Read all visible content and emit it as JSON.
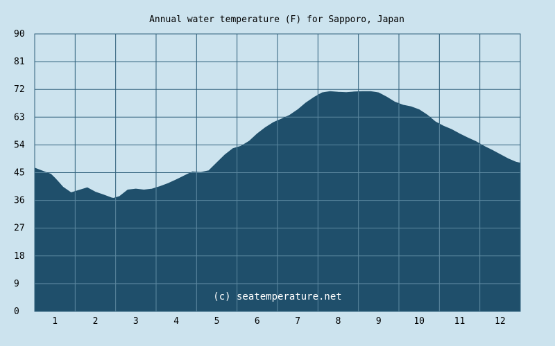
{
  "chart_data": {
    "type": "area",
    "title": "Annual water temperature (F) for Sapporo, Japan",
    "xlabel": "",
    "ylabel": "",
    "xlim": [
      0.5,
      12.5
    ],
    "ylim": [
      0,
      90
    ],
    "x_ticks": [
      "1",
      "2",
      "3",
      "4",
      "5",
      "6",
      "7",
      "8",
      "9",
      "10",
      "11",
      "12"
    ],
    "y_ticks": [
      "0",
      "9",
      "18",
      "27",
      "36",
      "45",
      "54",
      "63",
      "72",
      "81",
      "90"
    ],
    "grid": true,
    "annotation": "(c) seatemperature.net",
    "colors": {
      "background": "#cce3ee",
      "fill": "#1f4f6b",
      "grid": "#2e5f7a",
      "grid_over_fill": "#5c88a0"
    },
    "series": [
      {
        "x": [
          0.5,
          0.7,
          0.9,
          1.0,
          1.1,
          1.2,
          1.4,
          1.6,
          1.8,
          2.0,
          2.2,
          2.4,
          2.45,
          2.6,
          2.8,
          3.0,
          3.2,
          3.4,
          3.6,
          3.8,
          4.0,
          4.2,
          4.4,
          4.6,
          4.8,
          5.0,
          5.2,
          5.4,
          5.6,
          5.8,
          6.0,
          6.2,
          6.4,
          6.6,
          6.8,
          7.0,
          7.2,
          7.4,
          7.6,
          7.8,
          8.0,
          8.2,
          8.4,
          8.6,
          8.8,
          9.0,
          9.2,
          9.4,
          9.6,
          9.8,
          10.0,
          10.2,
          10.4,
          10.6,
          10.8,
          11.0,
          11.2,
          11.4,
          11.6,
          11.8,
          12.0,
          12.2,
          12.4,
          12.5
        ],
        "y": [
          46.5,
          45.5,
          44.5,
          43.2,
          41.8,
          40.3,
          38.5,
          39.3,
          40.1,
          38.7,
          37.8,
          36.8,
          36.7,
          37.3,
          39.4,
          39.7,
          39.4,
          39.7,
          40.5,
          41.5,
          42.7,
          44.0,
          45.3,
          45.1,
          45.6,
          48.2,
          50.8,
          52.8,
          53.6,
          55.2,
          57.6,
          59.6,
          61.3,
          62.4,
          63.6,
          65.4,
          67.6,
          69.4,
          70.9,
          71.3,
          71.1,
          71.0,
          71.2,
          71.3,
          71.3,
          70.9,
          69.5,
          67.9,
          66.9,
          66.4,
          65.4,
          63.7,
          61.5,
          60.1,
          59.0,
          57.6,
          56.3,
          55.1,
          53.6,
          52.3,
          50.9,
          49.5,
          48.4,
          48.1
        ]
      }
    ]
  }
}
